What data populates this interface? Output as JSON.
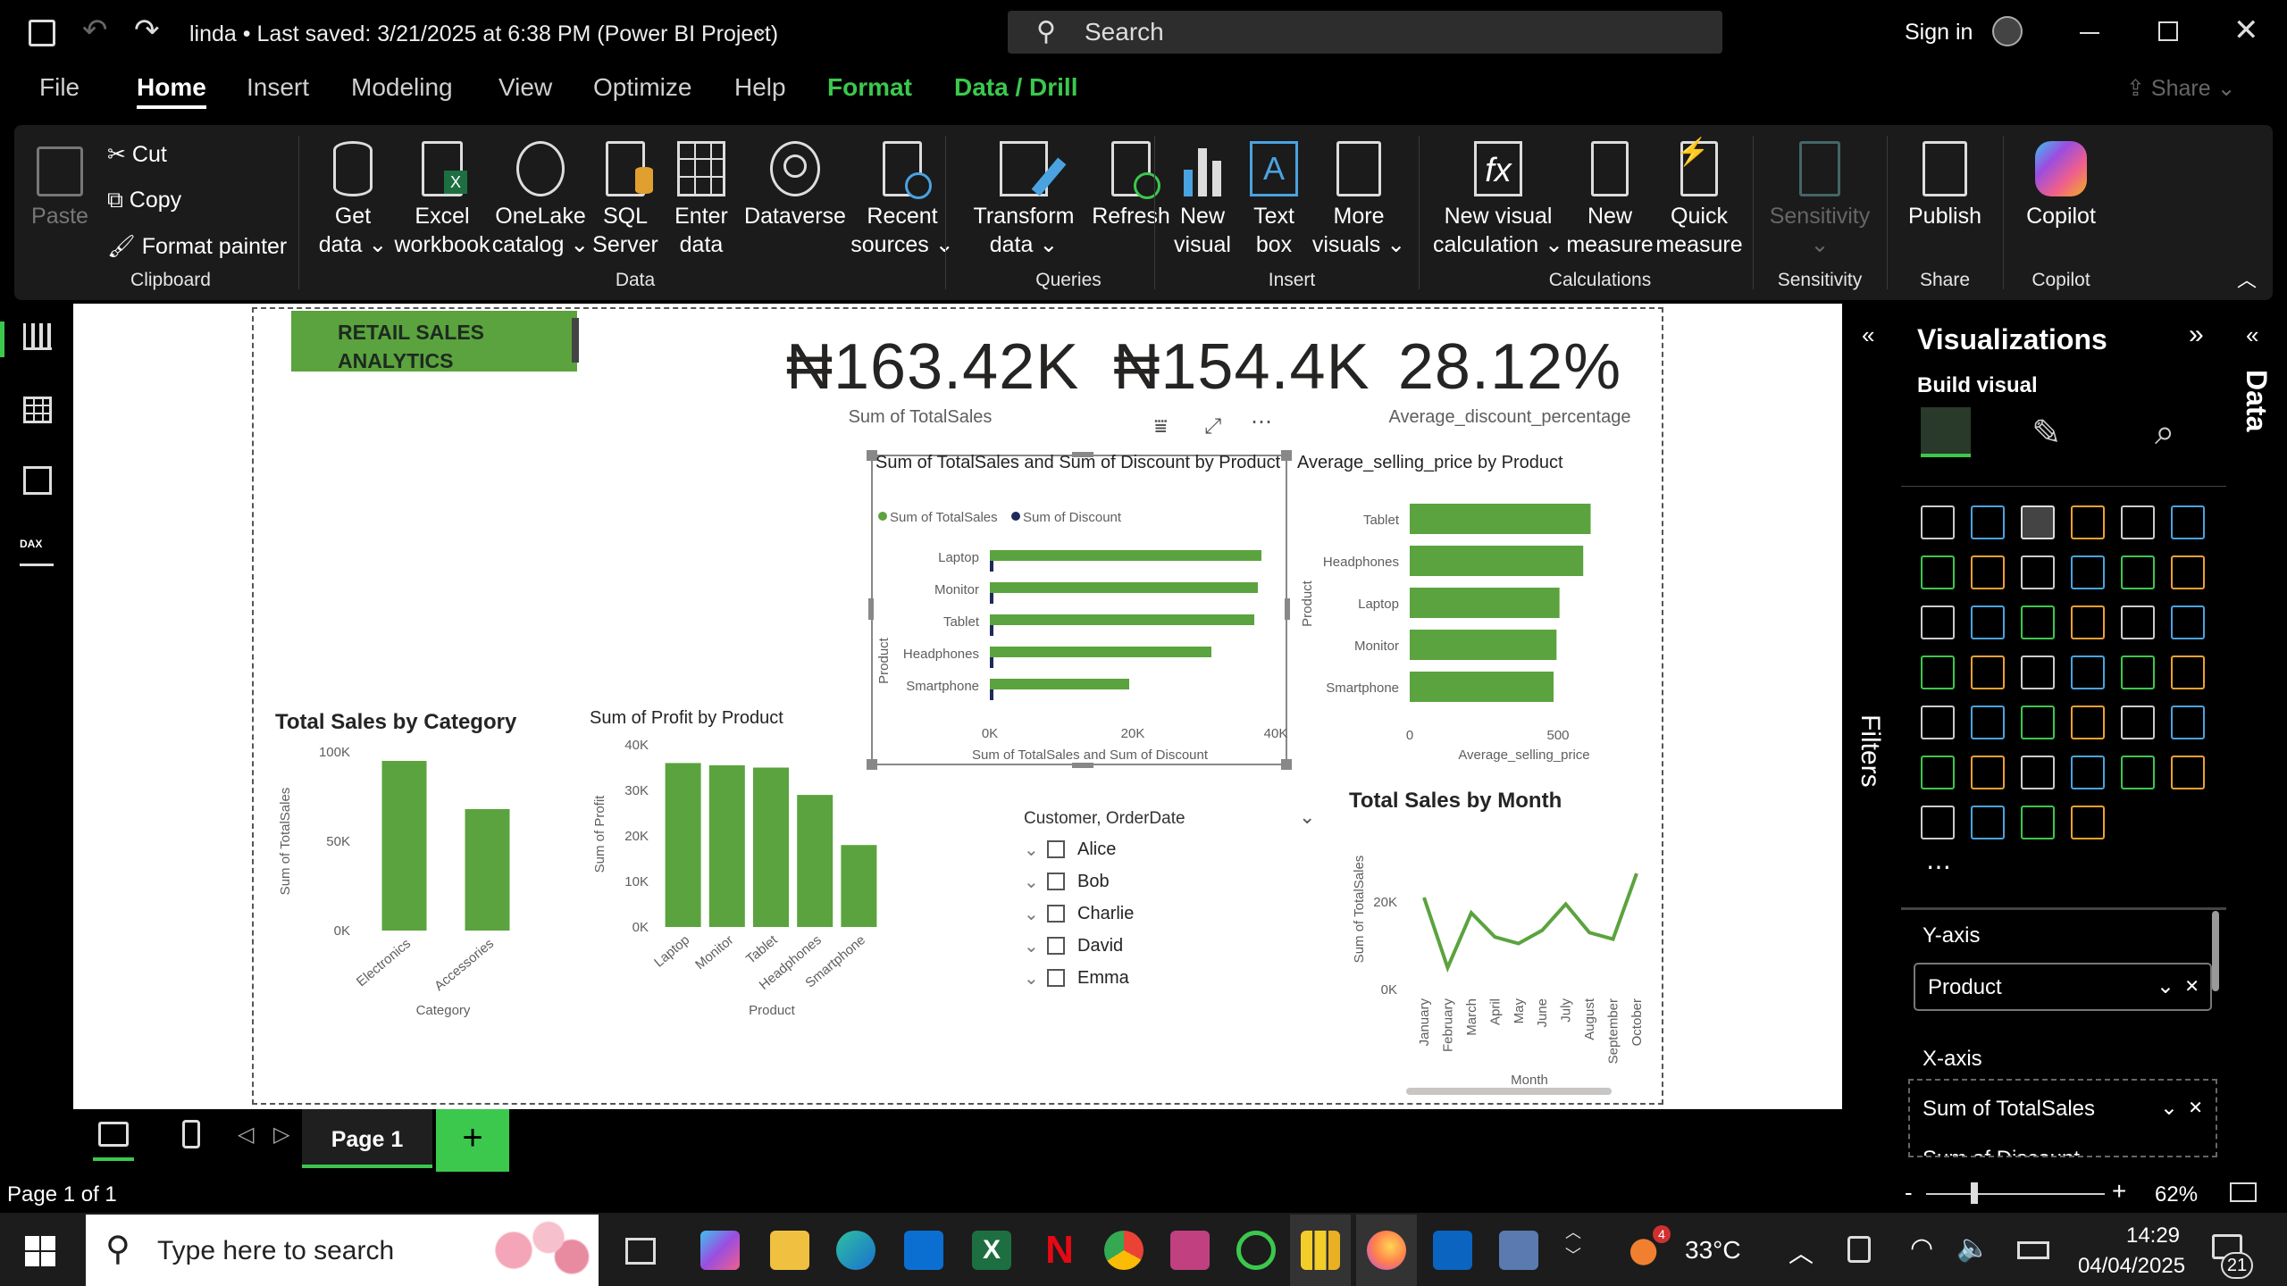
{
  "titlebar": {
    "title": "linda • Last saved: 3/21/2025 at 6:38 PM (Power BI Project)",
    "search_placeholder": "Search",
    "sign_in": "Sign in"
  },
  "tabs": [
    "File",
    "Home",
    "Insert",
    "Modeling",
    "View",
    "Optimize",
    "Help",
    "Format",
    "Data / Drill"
  ],
  "share": "Share",
  "ribbon": {
    "clipboard": {
      "paste": "Paste",
      "cut": "Cut",
      "copy": "Copy",
      "format_painter": "Format painter",
      "group": "Clipboard"
    },
    "data": {
      "get_data": [
        "Get",
        "data"
      ],
      "excel": [
        "Excel",
        "workbook"
      ],
      "onelake": [
        "OneLake",
        "catalog"
      ],
      "sql": [
        "SQL",
        "Server"
      ],
      "enter": [
        "Enter",
        "data"
      ],
      "dataverse": "Dataverse",
      "recent": [
        "Recent",
        "sources"
      ],
      "group": "Data"
    },
    "queries": {
      "transform": [
        "Transform",
        "data"
      ],
      "refresh": "Refresh",
      "group": "Queries"
    },
    "insert": {
      "new_visual": [
        "New",
        "visual"
      ],
      "text_box": [
        "Text",
        "box"
      ],
      "more_visuals": [
        "More",
        "visuals"
      ],
      "group": "Insert"
    },
    "calculations": {
      "new_visual_calc": [
        "New visual",
        "calculation"
      ],
      "new_measure": [
        "New",
        "measure"
      ],
      "quick_measure": [
        "Quick",
        "measure"
      ],
      "group": "Calculations"
    },
    "sensitivity": {
      "label": "Sensitivity",
      "group": "Sensitivity"
    },
    "share": {
      "publish": "Publish",
      "group": "Share"
    },
    "copilot": {
      "label": "Copilot",
      "group": "Copilot"
    }
  },
  "report": {
    "title_box": "RETAIL SALES ANALYTICS",
    "cards": [
      {
        "value": "₦163.42K",
        "label": "Sum of TotalSales"
      },
      {
        "value": "₦154.4K",
        "label": ""
      },
      {
        "value": "28.12%",
        "label": "Average_discount_percentage"
      }
    ],
    "colors": {
      "green": "#5ba33e",
      "navy": "#1d2a5a"
    },
    "slicer": {
      "title": "Customer, OrderDate",
      "items": [
        "Alice",
        "Bob",
        "Charlie",
        "David",
        "Emma"
      ]
    }
  },
  "filters_label": "Filters",
  "data_label": "Data",
  "viz_pane": {
    "title": "Visualizations",
    "build": "Build visual",
    "y_axis": "Y-axis",
    "y_field": "Product",
    "x_axis": "X-axis",
    "x_fields": [
      "Sum of TotalSales",
      "Sum of Discount"
    ]
  },
  "pages": {
    "page1": "Page 1",
    "status": "Page 1 of 1",
    "zoom": "62%"
  },
  "taskbar": {
    "search": "Type here to search",
    "temp": "33°C",
    "time": "14:29",
    "date": "04/04/2025",
    "notif": "21",
    "weather_badge": "4"
  },
  "chart_data": [
    {
      "type": "bar",
      "title": "Sum of TotalSales and Sum of Discount by Product",
      "orientation": "horizontal",
      "categories": [
        "Laptop",
        "Monitor",
        "Tablet",
        "Headphones",
        "Smartphone"
      ],
      "series": [
        {
          "name": "Sum of TotalSales",
          "values": [
            38000,
            37500,
            37000,
            31000,
            19500
          ]
        },
        {
          "name": "Sum of Discount",
          "values": [
            300,
            300,
            300,
            300,
            300
          ]
        }
      ],
      "xlabel": "Sum of TotalSales and Sum of Discount",
      "ylabel": "Product",
      "xticks": [
        "0K",
        "20K",
        "40K"
      ],
      "xlim": [
        0,
        40000
      ]
    },
    {
      "type": "bar",
      "title": "Average_selling_price by Product",
      "orientation": "horizontal",
      "categories": [
        "Tablet",
        "Headphones",
        "Laptop",
        "Monitor",
        "Smartphone"
      ],
      "values": [
        610,
        585,
        505,
        495,
        485
      ],
      "xlabel": "Average_selling_price",
      "ylabel": "Product",
      "xticks": [
        "0",
        "500"
      ],
      "xlim": [
        0,
        1000
      ]
    },
    {
      "type": "bar",
      "title": "Total Sales by Category",
      "categories": [
        "Electronics",
        "Accessories"
      ],
      "values": [
        95000,
        68000
      ],
      "xlabel": "Category",
      "ylabel": "Sum of TotalSales",
      "yticks": [
        "0K",
        "50K",
        "100K"
      ],
      "ylim": [
        0,
        100000
      ]
    },
    {
      "type": "bar",
      "title": "Sum of Profit by Product",
      "categories": [
        "Laptop",
        "Monitor",
        "Tablet",
        "Headphones",
        "Smartphone"
      ],
      "values": [
        36000,
        35500,
        35000,
        29000,
        18000
      ],
      "xlabel": "Product",
      "ylabel": "Sum of Profit",
      "yticks": [
        "0K",
        "10K",
        "20K",
        "30K",
        "40K"
      ],
      "ylim": [
        0,
        40000
      ]
    },
    {
      "type": "line",
      "title": "Total Sales by Month",
      "categories": [
        "January",
        "February",
        "March",
        "April",
        "May",
        "June",
        "July",
        "August",
        "September",
        "October"
      ],
      "values": [
        21000,
        5000,
        17500,
        12000,
        10500,
        13500,
        19500,
        13000,
        11500,
        26500
      ],
      "xlabel": "Month",
      "ylabel": "Sum of TotalSales",
      "yticks": [
        "0K",
        "20K"
      ],
      "ylim": [
        0,
        31000
      ]
    }
  ]
}
